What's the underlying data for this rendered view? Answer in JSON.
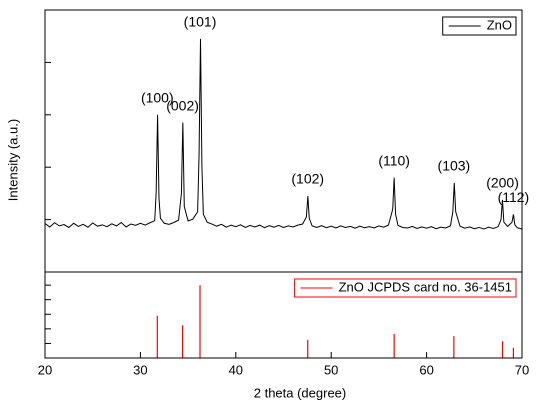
{
  "chart_data": [
    {
      "type": "line",
      "ylabel": "Intensity (a.u.)",
      "xlim": [
        20,
        70
      ],
      "ylim": [
        0,
        100
      ],
      "yticks": [
        0,
        20,
        40,
        60,
        80,
        100
      ],
      "legend": "upper right",
      "x": [
        20,
        20.5,
        21,
        21.5,
        22,
        22.5,
        23,
        23.5,
        24,
        24.5,
        25,
        25.5,
        26,
        26.5,
        27,
        27.5,
        28,
        28.5,
        29,
        29.5,
        30,
        30.5,
        31,
        31.5,
        31.65,
        31.8,
        31.95,
        32.1,
        32.5,
        33,
        33.5,
        34,
        34.3,
        34.45,
        34.6,
        35,
        35.5,
        36,
        36.15,
        36.3,
        36.45,
        36.6,
        37,
        37.5,
        38,
        38.5,
        39,
        39.5,
        40,
        40.5,
        41,
        41.5,
        42,
        42.5,
        43,
        43.5,
        44,
        44.5,
        45,
        45.5,
        46,
        46.5,
        47,
        47.4,
        47.55,
        47.7,
        48,
        48.5,
        49,
        49.5,
        50,
        50.5,
        51,
        51.5,
        52,
        52.5,
        53,
        53.5,
        54,
        54.5,
        55,
        55.5,
        56,
        56.45,
        56.6,
        56.75,
        57,
        57.5,
        58,
        58.5,
        59,
        59.5,
        60,
        60.5,
        61,
        61.5,
        62,
        62.5,
        62.75,
        62.9,
        63.05,
        63.5,
        64,
        64.5,
        65,
        65.5,
        66,
        66.5,
        67,
        67.5,
        67.8,
        67.95,
        68.1,
        68.5,
        68.95,
        69.1,
        69.25,
        69.5,
        70
      ],
      "series": [
        {
          "name": "ZnO",
          "color": "#000000",
          "values": [
            18.5,
            17.2,
            18.8,
            17.6,
            18.1,
            17.0,
            18.6,
            17.4,
            18.2,
            17.1,
            18.7,
            17.5,
            18.0,
            17.3,
            18.4,
            17.6,
            18.9,
            17.2,
            18.3,
            17.8,
            18.6,
            17.9,
            18.8,
            19.6,
            30,
            60,
            28,
            20.5,
            18.6,
            18.2,
            18.9,
            19.8,
            30,
            57,
            25,
            19.5,
            20.2,
            23,
            45,
            89,
            40,
            22,
            19.0,
            18.3,
            17.5,
            18.2,
            17.1,
            17.9,
            17.3,
            18.0,
            17.0,
            17.8,
            17.2,
            17.9,
            16.9,
            17.7,
            17.1,
            17.8,
            17.0,
            17.6,
            17.2,
            17.9,
            18.3,
            21,
            29,
            20.5,
            17.6,
            17.0,
            17.7,
            16.9,
            17.5,
            16.8,
            17.6,
            17.0,
            17.4,
            16.7,
            17.5,
            16.9,
            17.3,
            16.8,
            17.6,
            17.1,
            17.9,
            24,
            36,
            22,
            17.8,
            17.0,
            16.8,
            17.4,
            16.6,
            17.2,
            16.7,
            17.3,
            16.5,
            17.1,
            16.8,
            17.6,
            23,
            34,
            23,
            17.5,
            16.7,
            17.2,
            16.5,
            17.0,
            16.4,
            17.1,
            16.6,
            17.3,
            20,
            27.5,
            19,
            17.4,
            19,
            22,
            18,
            16.9,
            16.4
          ]
        }
      ],
      "annotations": [
        "(100)",
        "(002)",
        "(101)",
        "(102)",
        "(110)",
        "(103)",
        "(200)",
        "(112)"
      ]
    },
    {
      "type": "stem",
      "xlabel": "2 theta (degree)",
      "xlim": [
        20,
        70
      ],
      "xticks": [
        20,
        30,
        40,
        50,
        60,
        70
      ],
      "ylim": [
        0,
        118
      ],
      "yticks": [
        0,
        20,
        40,
        60,
        80,
        100
      ],
      "legend": "upper right",
      "x": [
        31.77,
        34.42,
        36.25,
        47.54,
        56.6,
        62.86,
        67.96,
        69.1
      ],
      "series": [
        {
          "name": "ZnO JCPDS card no. 36-1451",
          "color": "#ff0000",
          "values": [
            58,
            45,
            100,
            25,
            33,
            30,
            23,
            14
          ]
        }
      ]
    }
  ]
}
